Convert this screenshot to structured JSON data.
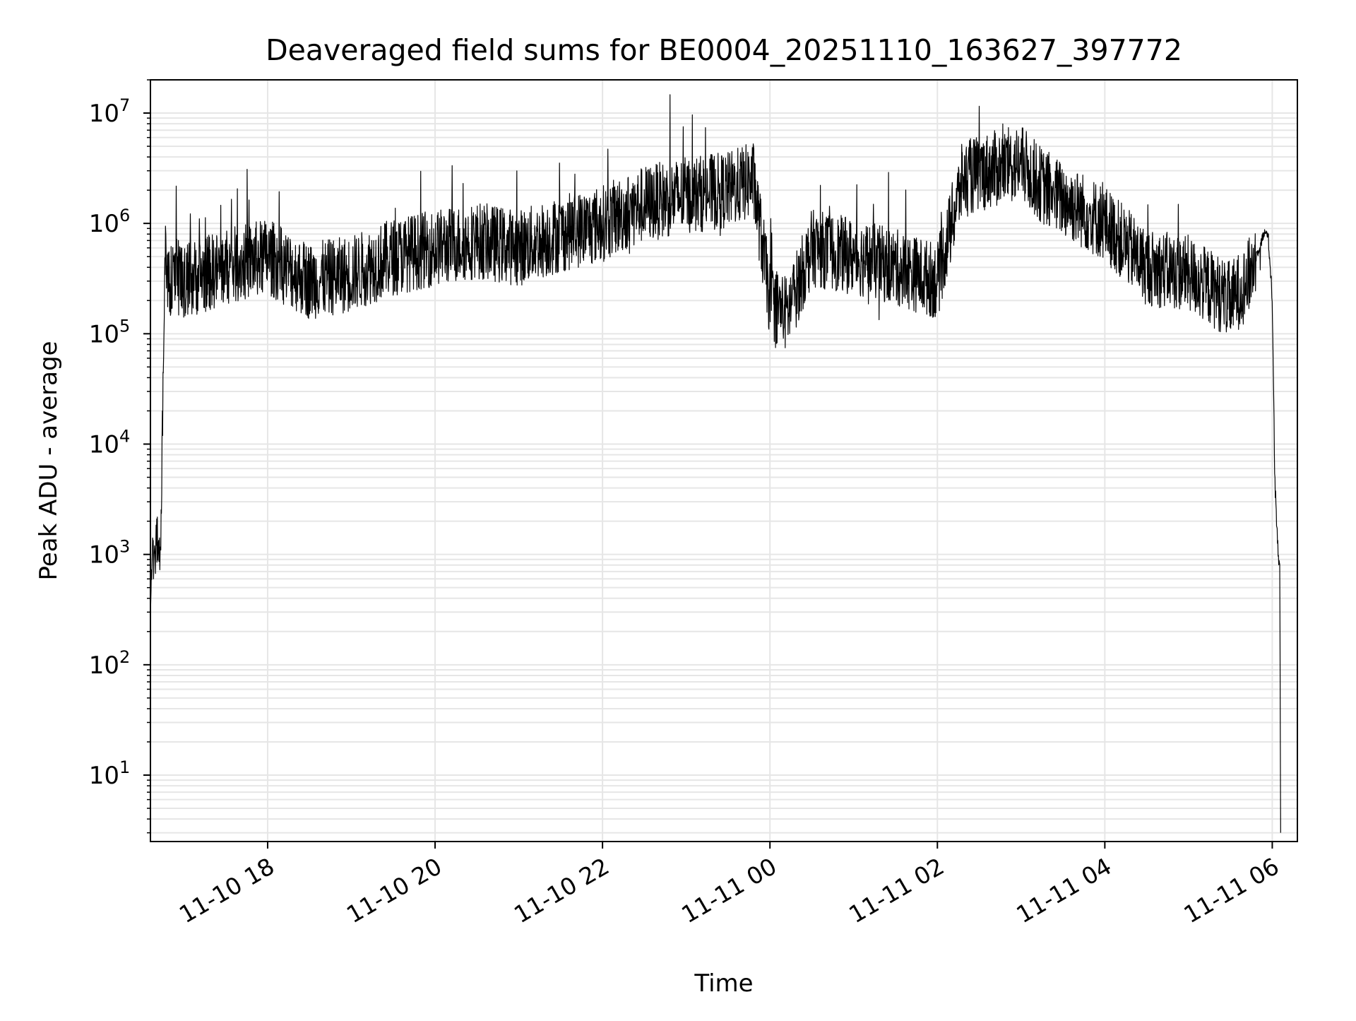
{
  "chart_data": {
    "type": "line",
    "title": "Deaveraged field sums for BE0004_20251110_163627_397772",
    "xlabel": "Time",
    "ylabel": "Peak ADU - average",
    "yscale": "log",
    "ylim": [
      2.5,
      20000000
    ],
    "xlim_hours": [
      16.6,
      30.3
    ],
    "grid": true,
    "legend": "none",
    "line_color": "#000000",
    "x_ticks": [
      {
        "hours": 18,
        "label": "11-10 18"
      },
      {
        "hours": 20,
        "label": "11-10 20"
      },
      {
        "hours": 22,
        "label": "11-10 22"
      },
      {
        "hours": 24,
        "label": "11-11 00"
      },
      {
        "hours": 26,
        "label": "11-11 02"
      },
      {
        "hours": 28,
        "label": "11-11 04"
      },
      {
        "hours": 30,
        "label": "11-11 06"
      }
    ],
    "y_ticks": [
      {
        "exp": 1,
        "base": "10",
        "sup": "1"
      },
      {
        "exp": 2,
        "base": "10",
        "sup": "2"
      },
      {
        "exp": 3,
        "base": "10",
        "sup": "3"
      },
      {
        "exp": 4,
        "base": "10",
        "sup": "4"
      },
      {
        "exp": 5,
        "base": "10",
        "sup": "5"
      },
      {
        "exp": 6,
        "base": "10",
        "sup": "6"
      },
      {
        "exp": 7,
        "base": "10",
        "sup": "7"
      }
    ],
    "series": [
      {
        "name": "field sums",
        "x_hours": [
          16.6,
          16.62,
          16.65,
          16.68,
          16.72,
          16.75,
          16.78,
          16.8,
          16.85,
          16.9,
          17.0,
          17.5,
          18.0,
          18.5,
          19.0,
          19.5,
          20.0,
          20.5,
          21.0,
          21.5,
          22.0,
          22.5,
          23.0,
          23.5,
          23.8,
          24.0,
          24.2,
          24.5,
          25.0,
          25.5,
          26.0,
          26.3,
          26.6,
          27.0,
          27.3,
          27.6,
          28.0,
          28.5,
          29.0,
          29.3,
          29.5,
          29.7,
          29.9,
          29.95,
          30.0,
          30.03,
          30.05,
          30.07,
          30.09,
          30.1
        ],
        "y": [
          200,
          1000,
          800,
          1500,
          900,
          30000,
          500000,
          400000,
          300000,
          350000,
          300000,
          400000,
          500000,
          300000,
          350000,
          500000,
          600000,
          700000,
          600000,
          800000,
          1000000,
          1500000,
          1800000,
          2000000,
          2500000,
          200000,
          150000,
          600000,
          500000,
          400000,
          300000,
          2500000,
          3000000,
          3500000,
          2000000,
          1500000,
          1000000,
          400000,
          350000,
          250000,
          200000,
          300000,
          800000,
          800000,
          200000,
          5000,
          2000,
          1000,
          800,
          3
        ]
      }
    ]
  }
}
